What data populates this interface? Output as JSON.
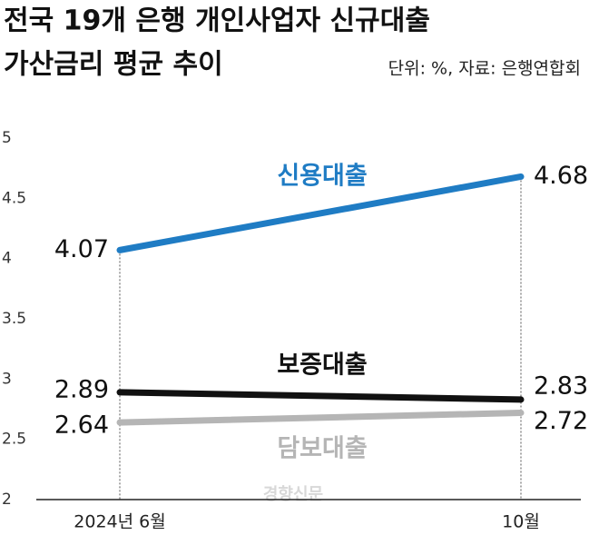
{
  "chart_data": {
    "type": "line",
    "title": [
      "전국 19개 은행 개인사업자 신규대출",
      "가산금리 평균 추이"
    ],
    "subtitle": "단위: %, 자료: 은행연합회",
    "categories": [
      "2024년 6월",
      "10월"
    ],
    "series": [
      {
        "name": "신용대출",
        "color": "#1f7cc4",
        "values": [
          4.07,
          4.68
        ]
      },
      {
        "name": "보증대출",
        "color": "#111111",
        "values": [
          2.89,
          2.83
        ]
      },
      {
        "name": "담보대출",
        "color": "#b5b5b5",
        "values": [
          2.64,
          2.72
        ]
      }
    ],
    "ylim": [
      2,
      5
    ],
    "yticks": [
      2,
      2.5,
      3,
      3.5,
      4,
      4.5,
      5
    ],
    "watermark": "경향신문"
  }
}
